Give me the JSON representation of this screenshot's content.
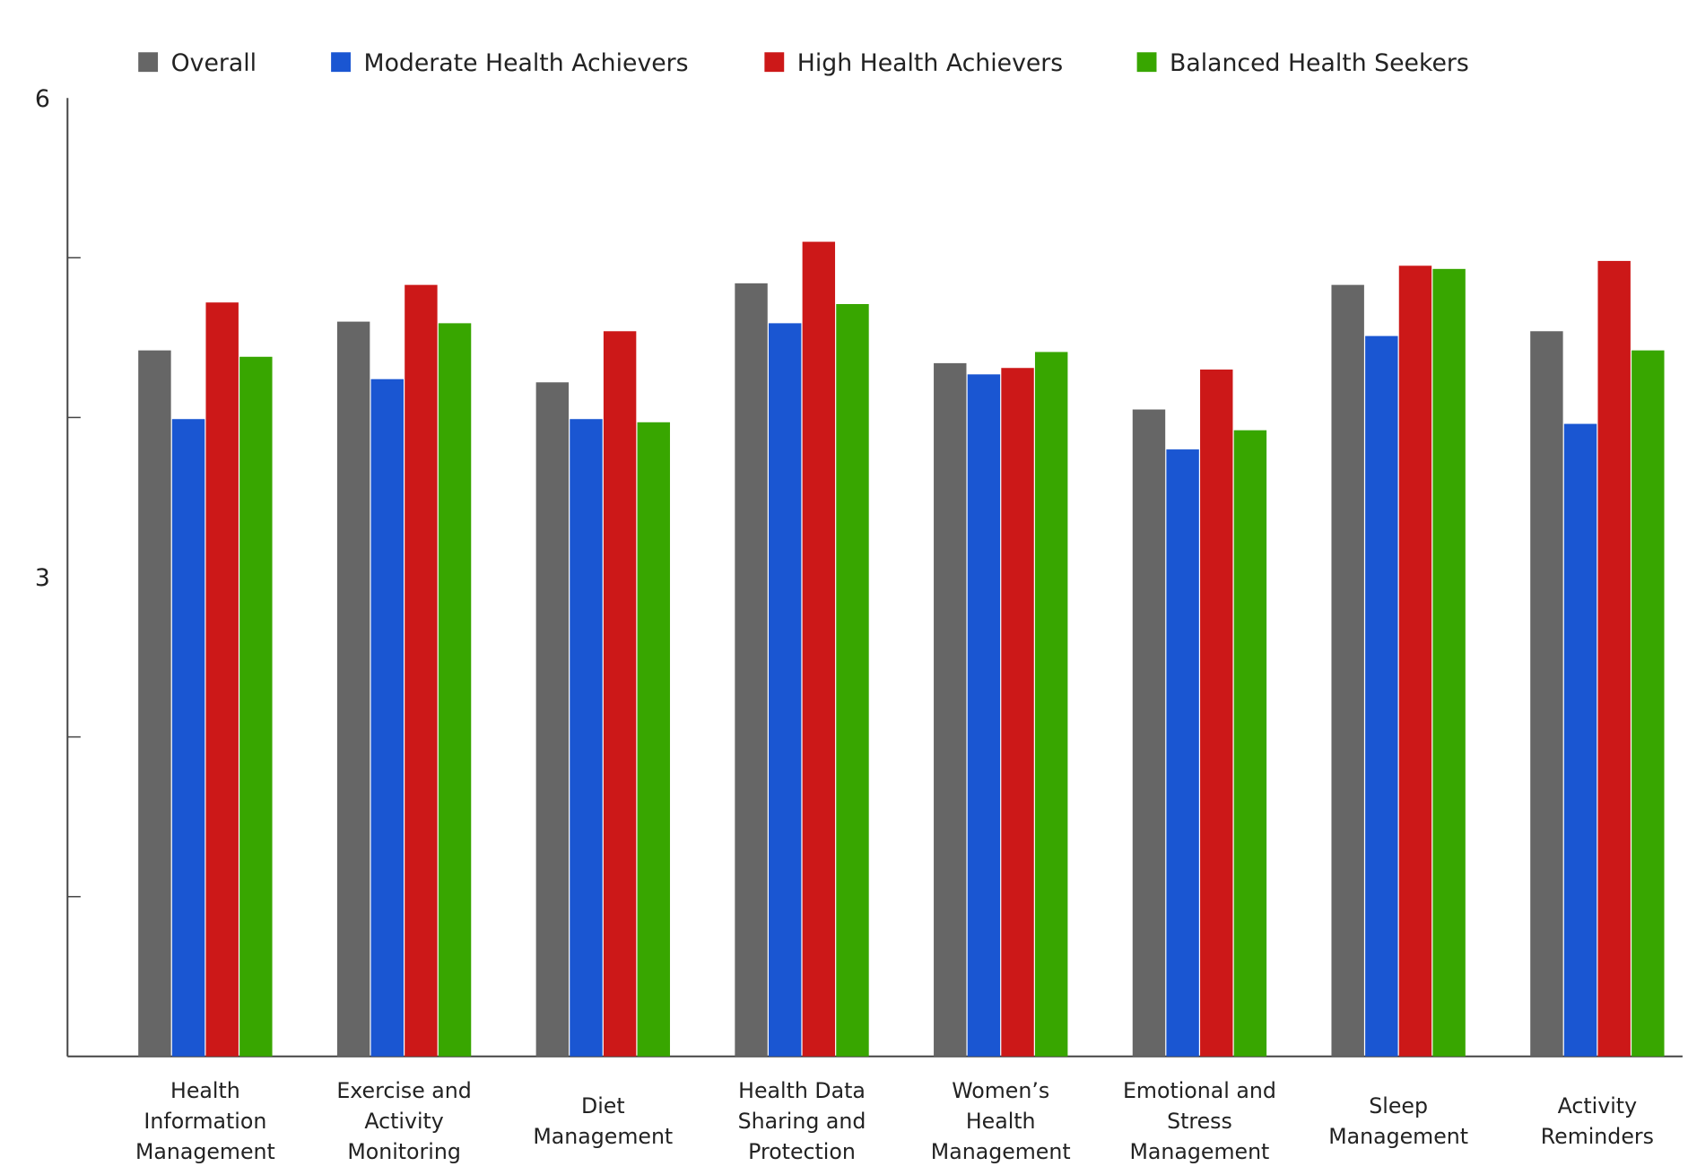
{
  "chart_data": {
    "type": "bar",
    "title": "",
    "xlabel": "",
    "ylabel": "",
    "ylim": [
      0,
      6
    ],
    "y_tick_labels": [
      {
        "value": 6,
        "label": "6"
      },
      {
        "value": 3,
        "label": "3"
      }
    ],
    "y_minor_ticks": [
      1,
      2,
      4,
      5
    ],
    "grid": false,
    "legend_position": "top",
    "categories": [
      [
        "Health",
        "Information",
        "Management"
      ],
      [
        "Exercise and",
        "Activity",
        "Monitoring"
      ],
      [
        "Diet",
        "Management"
      ],
      [
        "Health Data",
        "Sharing and",
        "Protection"
      ],
      [
        "Women’s",
        "Health",
        "Management"
      ],
      [
        "Emotional and",
        "Stress",
        "Management"
      ],
      [
        "Sleep",
        "Management"
      ],
      [
        "Activity",
        "Reminders"
      ]
    ],
    "series": [
      {
        "name": "Overall",
        "color": "#666666",
        "values": [
          4.42,
          4.6,
          4.22,
          4.84,
          4.34,
          4.05,
          4.83,
          4.54
        ]
      },
      {
        "name": "Moderate Health Achievers",
        "color": "#1a56d2",
        "values": [
          3.99,
          4.24,
          3.99,
          4.59,
          4.27,
          3.8,
          4.51,
          3.96
        ]
      },
      {
        "name": "High Health Achievers",
        "color": "#cc1818",
        "values": [
          4.72,
          4.83,
          4.54,
          5.1,
          4.31,
          4.3,
          4.95,
          4.98
        ]
      },
      {
        "name": "Balanced Health Seekers",
        "color": "#38a600",
        "values": [
          4.38,
          4.59,
          3.97,
          4.71,
          4.41,
          3.92,
          4.93,
          4.42
        ]
      }
    ]
  }
}
